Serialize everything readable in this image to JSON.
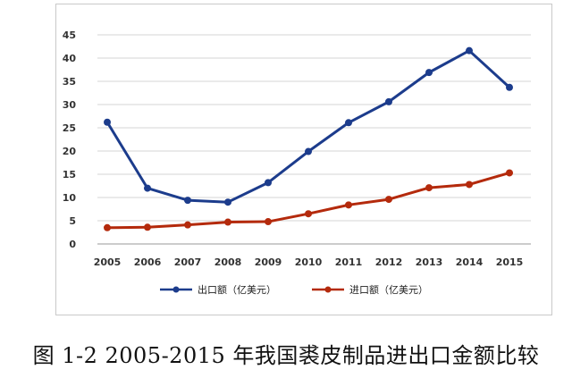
{
  "caption": "图 1-2 2005-2015 年我国裘皮制品进出口金额比较",
  "colors": {
    "export": "#1c3c8c",
    "import": "#b42a0c",
    "grid": "#d6d6d6",
    "axis": "#9a9a9a"
  },
  "chart_data": {
    "type": "line",
    "categories": [
      "2005",
      "2006",
      "2007",
      "2008",
      "2009",
      "2010",
      "2011",
      "2012",
      "2013",
      "2014",
      "2015"
    ],
    "ylim": [
      0,
      45
    ],
    "yticks": [
      0,
      5,
      10,
      15,
      20,
      25,
      30,
      35,
      40,
      45
    ],
    "grid": true,
    "legend_position": "bottom",
    "series": [
      {
        "name": "出口额（亿美元）",
        "color": "#1c3c8c",
        "values": [
          26.2,
          12.0,
          9.4,
          9.0,
          13.2,
          19.9,
          26.1,
          30.6,
          36.9,
          41.6,
          33.7
        ]
      },
      {
        "name": "进口额（亿美元）",
        "color": "#b42a0c",
        "values": [
          3.5,
          3.6,
          4.1,
          4.7,
          4.8,
          6.5,
          8.4,
          9.6,
          12.1,
          12.8,
          15.3
        ]
      }
    ]
  }
}
